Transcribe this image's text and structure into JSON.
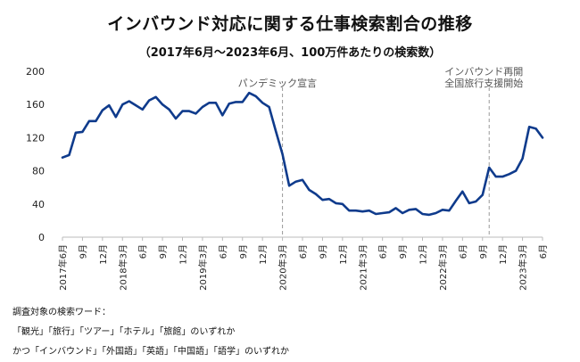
{
  "header": {
    "title": "インバウンド対応に関する仕事検索割合の推移",
    "subtitle": "（2017年6月〜2023年6月、100万件あたりの検索数）"
  },
  "notes": {
    "line1": "調査対象の検索ワード：",
    "line2": "「観光」「旅行」「ツアー」「ホテル」「旅館」のいずれか",
    "line3": "かつ「インバウンド」「外国語」「英語」「中国語」「語学」のいずれか"
  },
  "chart_data": {
    "type": "line",
    "title": "インバウンド対応に関する仕事検索割合の推移",
    "subtitle": "（2017年6月〜2023年6月、100万件あたりの検索数）",
    "xlabel": "",
    "ylabel": "",
    "ylim": [
      0,
      200
    ],
    "yticks": [
      0,
      40,
      80,
      120,
      160,
      200
    ],
    "grid": false,
    "line_color": "#0f3b8c",
    "x": [
      "2017-06",
      "2017-07",
      "2017-08",
      "2017-09",
      "2017-10",
      "2017-11",
      "2017-12",
      "2018-01",
      "2018-02",
      "2018-03",
      "2018-04",
      "2018-05",
      "2018-06",
      "2018-07",
      "2018-08",
      "2018-09",
      "2018-10",
      "2018-11",
      "2018-12",
      "2019-01",
      "2019-02",
      "2019-03",
      "2019-04",
      "2019-05",
      "2019-06",
      "2019-07",
      "2019-08",
      "2019-09",
      "2019-10",
      "2019-11",
      "2019-12",
      "2020-01",
      "2020-02",
      "2020-03",
      "2020-04",
      "2020-05",
      "2020-06",
      "2020-07",
      "2020-08",
      "2020-09",
      "2020-10",
      "2020-11",
      "2020-12",
      "2021-01",
      "2021-02",
      "2021-03",
      "2021-04",
      "2021-05",
      "2021-06",
      "2021-07",
      "2021-08",
      "2021-09",
      "2021-10",
      "2021-11",
      "2021-12",
      "2022-01",
      "2022-02",
      "2022-03",
      "2022-04",
      "2022-05",
      "2022-06",
      "2022-07",
      "2022-08",
      "2022-09",
      "2022-10",
      "2022-11",
      "2022-12",
      "2023-01",
      "2023-02",
      "2023-03",
      "2023-04",
      "2023-05",
      "2023-06"
    ],
    "series": [
      {
        "values": [
          96,
          99,
          126,
          127,
          140,
          140,
          153,
          159,
          145,
          160,
          164,
          159,
          154,
          165,
          169,
          160,
          154,
          143,
          152,
          152,
          149,
          157,
          162,
          162,
          147,
          161,
          163,
          163,
          174,
          170,
          162,
          157,
          128,
          100,
          62,
          67,
          69,
          57,
          52,
          45,
          46,
          41,
          40,
          32,
          32,
          31,
          32,
          28,
          29,
          30,
          35,
          29,
          33,
          34,
          28,
          27,
          29,
          33,
          32,
          44,
          55,
          41,
          43,
          51,
          84,
          73,
          73,
          76,
          80,
          95,
          133,
          131,
          120
        ]
      }
    ],
    "x_tick_labels": [
      {
        "month": "2017-06",
        "label": "2017年6月"
      },
      {
        "month": "2017-09",
        "label": "9月"
      },
      {
        "month": "2017-12",
        "label": "12月"
      },
      {
        "month": "2018-03",
        "label": "2018年3月"
      },
      {
        "month": "2018-06",
        "label": "6月"
      },
      {
        "month": "2018-09",
        "label": "9月"
      },
      {
        "month": "2018-12",
        "label": "12月"
      },
      {
        "month": "2019-03",
        "label": "2019年3月"
      },
      {
        "month": "2019-06",
        "label": "6月"
      },
      {
        "month": "2019-09",
        "label": "9月"
      },
      {
        "month": "2019-12",
        "label": "12月"
      },
      {
        "month": "2020-03",
        "label": "2020年3月"
      },
      {
        "month": "2020-06",
        "label": "6月"
      },
      {
        "month": "2020-09",
        "label": "9月"
      },
      {
        "month": "2020-12",
        "label": "12月"
      },
      {
        "month": "2021-03",
        "label": "2021年3月"
      },
      {
        "month": "2021-06",
        "label": "6月"
      },
      {
        "month": "2021-09",
        "label": "9月"
      },
      {
        "month": "2021-12",
        "label": "12月"
      },
      {
        "month": "2022-03",
        "label": "2022年3月"
      },
      {
        "month": "2022-06",
        "label": "6月"
      },
      {
        "month": "2022-09",
        "label": "9月"
      },
      {
        "month": "2022-12",
        "label": "12月"
      },
      {
        "month": "2023-03",
        "label": "2023年3月"
      },
      {
        "month": "2023-06",
        "label": "6月"
      }
    ],
    "annotations": [
      {
        "month": "2020-03",
        "lines": [
          "パンデミック宣言"
        ]
      },
      {
        "month": "2022-10",
        "lines": [
          "インバウンド再開",
          "全国旅行支援開始"
        ]
      }
    ]
  }
}
